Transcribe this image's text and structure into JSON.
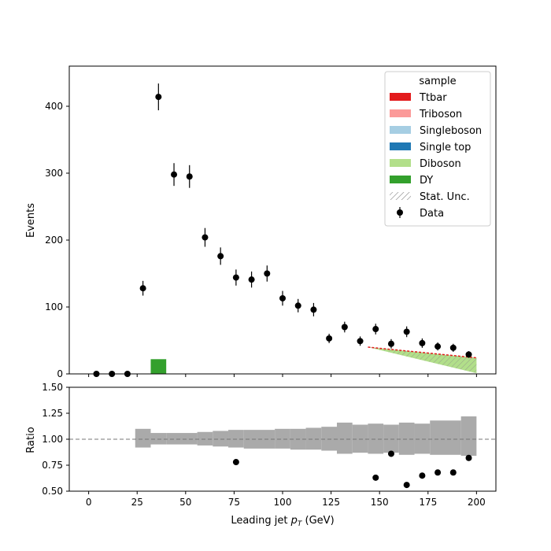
{
  "chart_data": {
    "type": "bar",
    "top_panel": {
      "ylabel": "Events",
      "ylim": [
        0,
        460
      ],
      "yticks": [
        0,
        100,
        200,
        300,
        400
      ],
      "legend": {
        "title": "sample",
        "placement": "top-right",
        "entries": [
          {
            "label": "Ttbar",
            "kind": "patch",
            "color": "#e31a1c"
          },
          {
            "label": "Triboson",
            "kind": "patch",
            "color": "#fb9a99"
          },
          {
            "label": "Singleboson",
            "kind": "patch",
            "color": "#a6cee3"
          },
          {
            "label": "Single top",
            "kind": "patch",
            "color": "#1f78b4"
          },
          {
            "label": "Diboson",
            "kind": "patch",
            "color": "#b2df8a"
          },
          {
            "label": "DY",
            "kind": "patch",
            "color": "#33a02c"
          },
          {
            "label": "Stat. Unc.",
            "kind": "hatch",
            "color": "#888888"
          },
          {
            "label": "Data",
            "kind": "errorbar",
            "color": "#000000"
          }
        ]
      },
      "dy_bar": {
        "x0": 32,
        "x1": 40,
        "value": 22,
        "color": "#33a02c"
      },
      "mc_wedge": {
        "x_start": 144,
        "x_end": 200,
        "top_start": 40,
        "top_end": 24,
        "bottom_start": 40,
        "bottom_end": 1,
        "color": "#b2df8a",
        "edge_color": "#e31a1c"
      },
      "data": {
        "x": [
          4,
          12,
          20,
          28,
          36,
          44,
          52,
          60,
          68,
          76,
          84,
          92,
          100,
          108,
          116,
          124,
          132,
          140,
          148,
          156,
          164,
          172,
          180,
          188,
          196
        ],
        "y": [
          0,
          0,
          0,
          128,
          414,
          298,
          295,
          204,
          176,
          144,
          141,
          150,
          113,
          102,
          96,
          53,
          70,
          49,
          67,
          45,
          63,
          46,
          41,
          39,
          29
        ],
        "yerr": [
          0,
          0,
          0,
          11,
          20,
          17,
          17,
          14,
          13,
          12,
          12,
          12,
          11,
          10,
          10,
          7,
          8,
          7,
          8,
          7,
          8,
          7,
          6,
          6,
          5
        ]
      }
    },
    "ratio_panel": {
      "ylabel": "Ratio",
      "ylim": [
        0.5,
        1.5
      ],
      "yticks": [
        0.5,
        0.75,
        1.0,
        1.25,
        1.5
      ],
      "ytick_labels": [
        "0.50",
        "0.75",
        "1.00",
        "1.25",
        "1.50"
      ],
      "reference_line": 1.0,
      "uncertainty_band": {
        "color": "#aaaaaa",
        "edges": [
          24,
          32,
          40,
          56,
          64,
          72,
          80,
          96,
          104,
          112,
          120,
          128,
          136,
          144,
          152,
          160,
          168,
          176,
          192,
          200
        ],
        "low": [
          0.92,
          0.95,
          0.95,
          0.94,
          0.93,
          0.92,
          0.91,
          0.91,
          0.9,
          0.9,
          0.89,
          0.86,
          0.87,
          0.86,
          0.87,
          0.85,
          0.86,
          0.85,
          0.84
        ],
        "high": [
          1.1,
          1.06,
          1.06,
          1.07,
          1.08,
          1.09,
          1.09,
          1.1,
          1.1,
          1.11,
          1.12,
          1.16,
          1.14,
          1.15,
          1.14,
          1.16,
          1.15,
          1.18,
          1.22
        ]
      },
      "data": {
        "x": [
          76,
          148,
          156,
          164,
          172,
          180,
          188,
          196
        ],
        "y": [
          0.78,
          0.63,
          0.86,
          0.56,
          0.65,
          0.68,
          0.68,
          0.82
        ],
        "yerr": [
          0,
          0,
          0,
          0,
          0,
          0,
          0,
          0.02
        ]
      }
    },
    "xlabel_text": "Leading jet  ",
    "xlabel_symbol": "p",
    "xlabel_subscript": "T",
    "xlabel_unit": " (GeV)",
    "xlim": [
      -10,
      210
    ],
    "xticks": [
      0,
      25,
      50,
      75,
      100,
      125,
      150,
      175,
      200
    ],
    "grid": false
  }
}
